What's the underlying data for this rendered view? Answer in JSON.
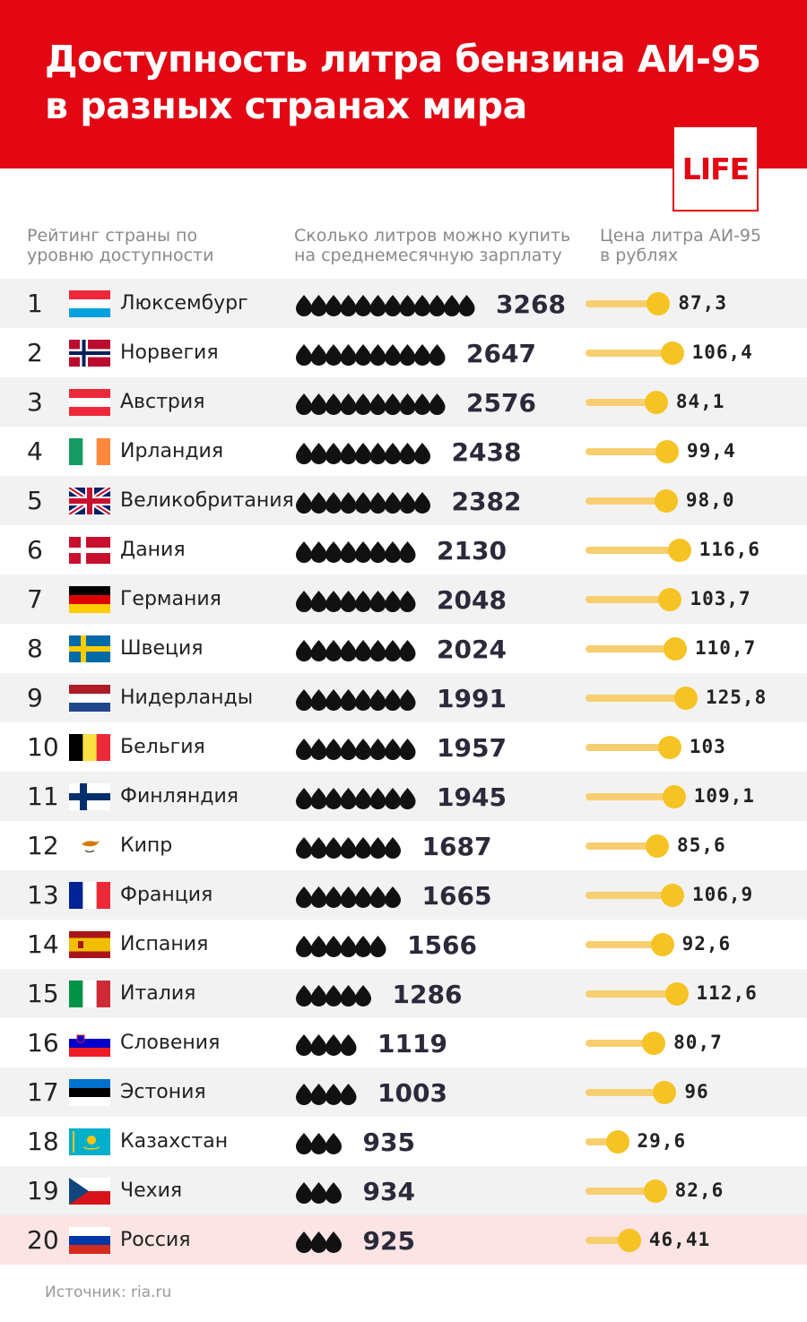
{
  "title": "Доступность литра бензина АИ-95\nв разных странах мира",
  "logo": "LIFE",
  "columns": {
    "rank": "Рейтинг страны по\nуровню доступности",
    "liters": "Сколько литров можно купить\nна среднемесячную зарплату",
    "price": "Цена литра АИ-95\nв рублях"
  },
  "source": "Источник: ria.ru",
  "colors": {
    "header": "#e30613",
    "drop": "#111111",
    "bar": "#f7cf70",
    "dot": "#f6c324",
    "highlight_row": "#fbe4e3"
  },
  "chart_data": {
    "type": "table",
    "rows": [
      {
        "rank": "1",
        "country": "Люксембург",
        "flag": "luxembourg-flag",
        "liters": 3268,
        "liters_label": "3268",
        "price": 87.3,
        "price_label": "87,3",
        "drops": 12
      },
      {
        "rank": "2",
        "country": "Норвегия",
        "flag": "norway-flag",
        "liters": 2647,
        "liters_label": "2647",
        "price": 106.4,
        "price_label": "106,4",
        "drops": 10
      },
      {
        "rank": "3",
        "country": "Австрия",
        "flag": "austria-flag",
        "liters": 2576,
        "liters_label": "2576",
        "price": 84.1,
        "price_label": "84,1",
        "drops": 10
      },
      {
        "rank": "4",
        "country": "Ирландия",
        "flag": "ireland-flag",
        "liters": 2438,
        "liters_label": "2438",
        "price": 99.4,
        "price_label": "99,4",
        "drops": 9
      },
      {
        "rank": "5",
        "country": "Великобритания",
        "flag": "uk-flag",
        "liters": 2382,
        "liters_label": "2382",
        "price": 98.0,
        "price_label": "98,0",
        "drops": 9
      },
      {
        "rank": "6",
        "country": "Дания",
        "flag": "denmark-flag",
        "liters": 2130,
        "liters_label": "2130",
        "price": 116.6,
        "price_label": "116,6",
        "drops": 8
      },
      {
        "rank": "7",
        "country": "Германия",
        "flag": "germany-flag",
        "liters": 2048,
        "liters_label": "2048",
        "price": 103.7,
        "price_label": "103,7",
        "drops": 8
      },
      {
        "rank": "8",
        "country": "Швеция",
        "flag": "sweden-flag",
        "liters": 2024,
        "liters_label": "2024",
        "price": 110.7,
        "price_label": "110,7",
        "drops": 8
      },
      {
        "rank": "9",
        "country": "Нидерланды",
        "flag": "netherlands-flag",
        "liters": 1991,
        "liters_label": "1991",
        "price": 125.8,
        "price_label": "125,8",
        "drops": 8
      },
      {
        "rank": "10",
        "country": "Бельгия",
        "flag": "belgium-flag",
        "liters": 1957,
        "liters_label": "1957",
        "price": 103,
        "price_label": "103",
        "drops": 8
      },
      {
        "rank": "11",
        "country": "Финляндия",
        "flag": "finland-flag",
        "liters": 1945,
        "liters_label": "1945",
        "price": 109.1,
        "price_label": "109,1",
        "drops": 8
      },
      {
        "rank": "12",
        "country": "Кипр",
        "flag": "cyprus-flag",
        "liters": 1687,
        "liters_label": "1687",
        "price": 85.6,
        "price_label": "85,6",
        "drops": 7
      },
      {
        "rank": "13",
        "country": "Франция",
        "flag": "france-flag",
        "liters": 1665,
        "liters_label": "1665",
        "price": 106.9,
        "price_label": "106,9",
        "drops": 7
      },
      {
        "rank": "14",
        "country": "Испания",
        "flag": "spain-flag",
        "liters": 1566,
        "liters_label": "1566",
        "price": 92.6,
        "price_label": "92,6",
        "drops": 6
      },
      {
        "rank": "15",
        "country": "Италия",
        "flag": "italy-flag",
        "liters": 1286,
        "liters_label": "1286",
        "price": 112.6,
        "price_label": "112,6",
        "drops": 5
      },
      {
        "rank": "16",
        "country": "Словения",
        "flag": "slovenia-flag",
        "liters": 1119,
        "liters_label": "1119",
        "price": 80.7,
        "price_label": "80,7",
        "drops": 4
      },
      {
        "rank": "17",
        "country": "Эстония",
        "flag": "estonia-flag",
        "liters": 1003,
        "liters_label": "1003",
        "price": 96,
        "price_label": "96",
        "drops": 4
      },
      {
        "rank": "18",
        "country": "Казахстан",
        "flag": "kazakhstan-flag",
        "liters": 935,
        "liters_label": "935",
        "price": 29.6,
        "price_label": "29,6",
        "drops": 3
      },
      {
        "rank": "19",
        "country": "Чехия",
        "flag": "czech-flag",
        "liters": 934,
        "liters_label": "934",
        "price": 82.6,
        "price_label": "82,6",
        "drops": 3
      },
      {
        "rank": "20",
        "country": "Россия",
        "flag": "russia-flag",
        "liters": 925,
        "liters_label": "925",
        "price": 46.41,
        "price_label": "46,41",
        "drops": 3,
        "highlight": true
      }
    ]
  }
}
